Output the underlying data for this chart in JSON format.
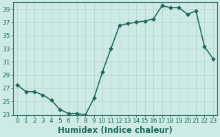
{
  "x": [
    0,
    1,
    2,
    3,
    4,
    5,
    6,
    7,
    8,
    9,
    10,
    11,
    12,
    13,
    14,
    15,
    16,
    17,
    18,
    19,
    20,
    21,
    22,
    23
  ],
  "y": [
    27.5,
    26.5,
    26.5,
    26.0,
    25.2,
    23.8,
    23.2,
    23.2,
    23.0,
    25.5,
    29.5,
    33.0,
    36.5,
    36.8,
    37.0,
    37.2,
    37.5,
    39.5,
    39.2,
    39.2,
    38.2,
    38.7,
    33.3,
    31.5
  ],
  "xlabel": "Humidex (Indice chaleur)",
  "ylim": [
    23,
    40
  ],
  "xlim": [
    -0.5,
    23.5
  ],
  "yticks": [
    23,
    25,
    27,
    29,
    31,
    33,
    35,
    37,
    39
  ],
  "xticks": [
    0,
    1,
    2,
    3,
    4,
    5,
    6,
    7,
    8,
    9,
    10,
    11,
    12,
    13,
    14,
    15,
    16,
    17,
    18,
    19,
    20,
    21,
    22,
    23
  ],
  "xtick_labels": [
    "0",
    "1",
    "2",
    "3",
    "4",
    "5",
    "6",
    "7",
    "8",
    "9",
    "10",
    "11",
    "12",
    "13",
    "14",
    "15",
    "16",
    "17",
    "18",
    "19",
    "20",
    "21",
    "22",
    "23"
  ],
  "line_color": "#1e6b5a",
  "marker": "D",
  "marker_size": 2.5,
  "line_width": 1.2,
  "bg_color": "#ceeae6",
  "grid_color": "#b8d8d4",
  "axes_color": "#1e6b5a",
  "tick_fontsize": 6.5,
  "xlabel_fontsize": 8.5
}
